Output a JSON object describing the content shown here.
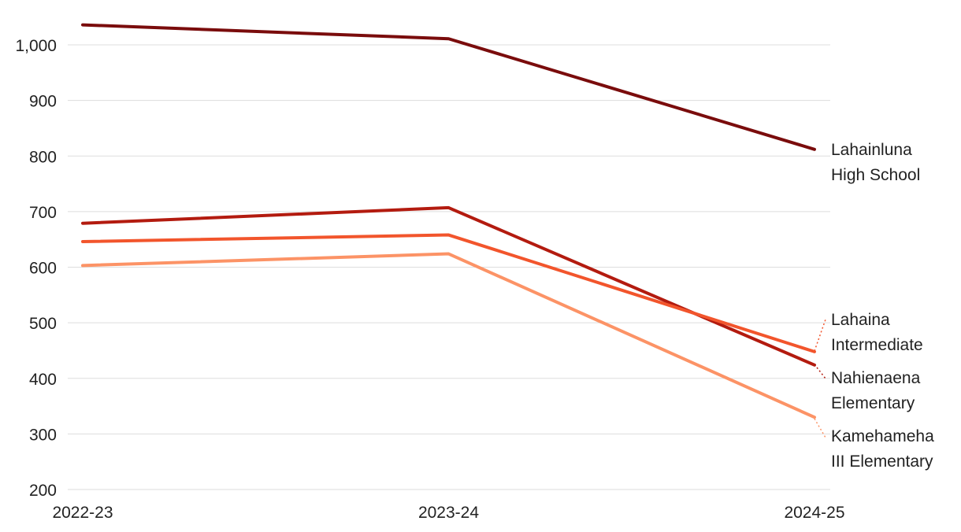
{
  "chart_data": {
    "type": "line",
    "title": "",
    "xlabel": "",
    "ylabel": "",
    "x": [
      "2022-23",
      "2023-24",
      "2024-25"
    ],
    "ylim": [
      200,
      1050
    ],
    "yticks": [
      200,
      300,
      400,
      500,
      600,
      700,
      800,
      900,
      1000
    ],
    "ytick_labels": [
      "200",
      "300",
      "400",
      "500",
      "600",
      "700",
      "800",
      "900",
      "1,000"
    ],
    "grid": true,
    "legend": "direct labels at right end of lines",
    "series": [
      {
        "name_lines": [
          "Lahainluna",
          "High School"
        ],
        "color": "#7a0c0c",
        "values": [
          1036,
          1011,
          812
        ]
      },
      {
        "name_lines": [
          "Nahienaena",
          "Elementary"
        ],
        "color": "#b31b0f",
        "values": [
          679,
          707,
          424
        ]
      },
      {
        "name_lines": [
          "Lahaina",
          "Intermediate"
        ],
        "color": "#f2552c",
        "values": [
          646,
          658,
          448
        ]
      },
      {
        "name_lines": [
          "Kamehameha",
          "III Elementary"
        ],
        "color": "#fc9366",
        "values": [
          603,
          624,
          330
        ]
      }
    ]
  }
}
